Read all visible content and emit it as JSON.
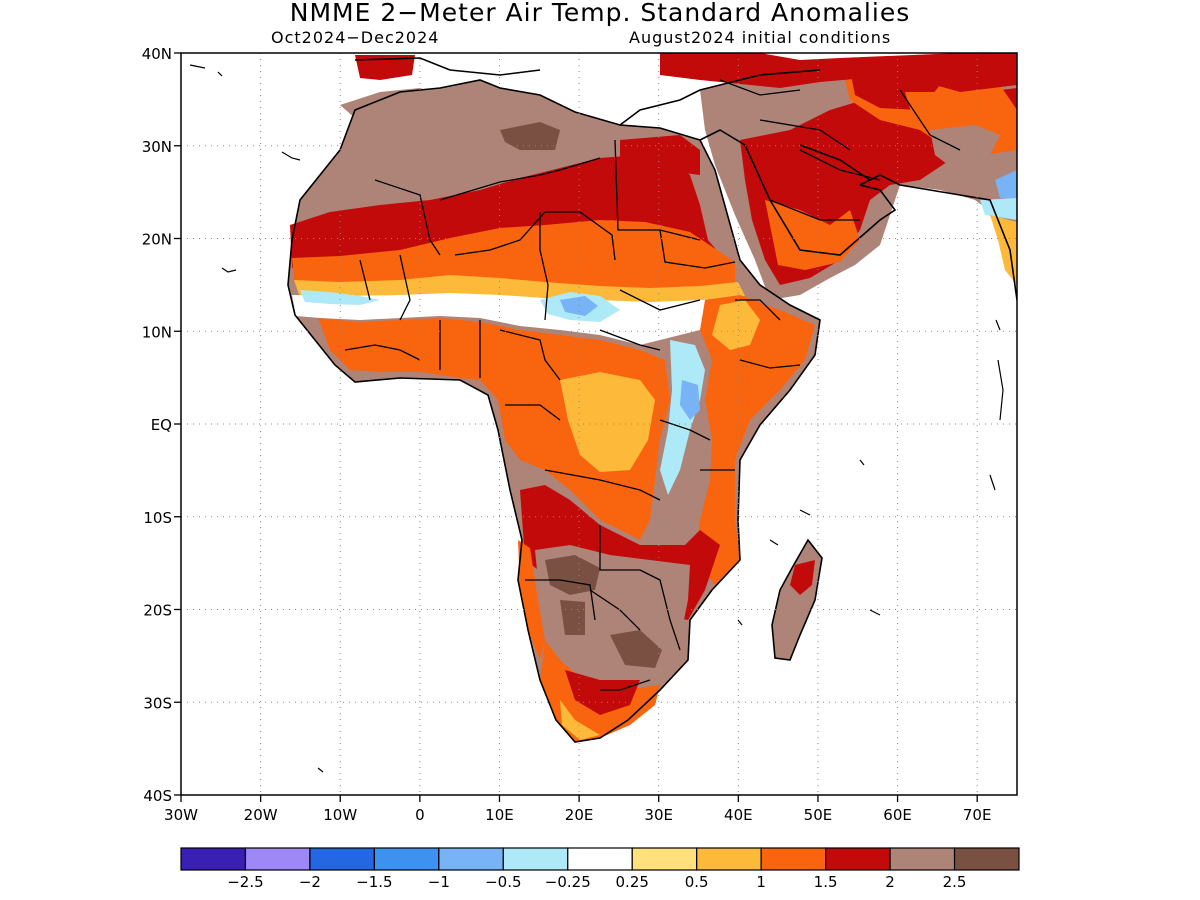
{
  "title": "NMME 2−Meter Air Temp. Standard Anomalies",
  "subtitle_left": "Oct2024−Dec2024",
  "subtitle_right": "August2024 initial conditions",
  "map_extent": {
    "lon": [
      -30,
      75
    ],
    "lat": [
      -40,
      40
    ]
  },
  "lat_ticks": [
    {
      "lat": 40,
      "label": "40N"
    },
    {
      "lat": 30,
      "label": "30N"
    },
    {
      "lat": 20,
      "label": "20N"
    },
    {
      "lat": 10,
      "label": "10N"
    },
    {
      "lat": 0,
      "label": "EQ"
    },
    {
      "lat": -10,
      "label": "10S"
    },
    {
      "lat": -20,
      "label": "20S"
    },
    {
      "lat": -30,
      "label": "30S"
    },
    {
      "lat": -40,
      "label": "40S"
    }
  ],
  "lon_ticks": [
    {
      "lon": -30,
      "label": "30W"
    },
    {
      "lon": -20,
      "label": "20W"
    },
    {
      "lon": -10,
      "label": "10W"
    },
    {
      "lon": 0,
      "label": "0"
    },
    {
      "lon": 10,
      "label": "10E"
    },
    {
      "lon": 20,
      "label": "20E"
    },
    {
      "lon": 30,
      "label": "30E"
    },
    {
      "lon": 40,
      "label": "40E"
    },
    {
      "lon": 50,
      "label": "50E"
    },
    {
      "lon": 60,
      "label": "60E"
    },
    {
      "lon": 70,
      "label": "70E"
    }
  ],
  "grid": true,
  "colorbar": {
    "colors": [
      "#3a1fb4",
      "#9d88f5",
      "#2566e3",
      "#3d91f0",
      "#77b3f5",
      "#ade9f7",
      "#ffffff",
      "#fee17a",
      "#fdba3a",
      "#f9640f",
      "#c30a0a",
      "#ae8478",
      "#7a5042"
    ],
    "labels": [
      "−2.5",
      "−2",
      "−1.5",
      "−1",
      "−0.5",
      "−0.25",
      "0.25",
      "0.5",
      "1",
      "1.5",
      "2",
      "2.5"
    ]
  }
}
